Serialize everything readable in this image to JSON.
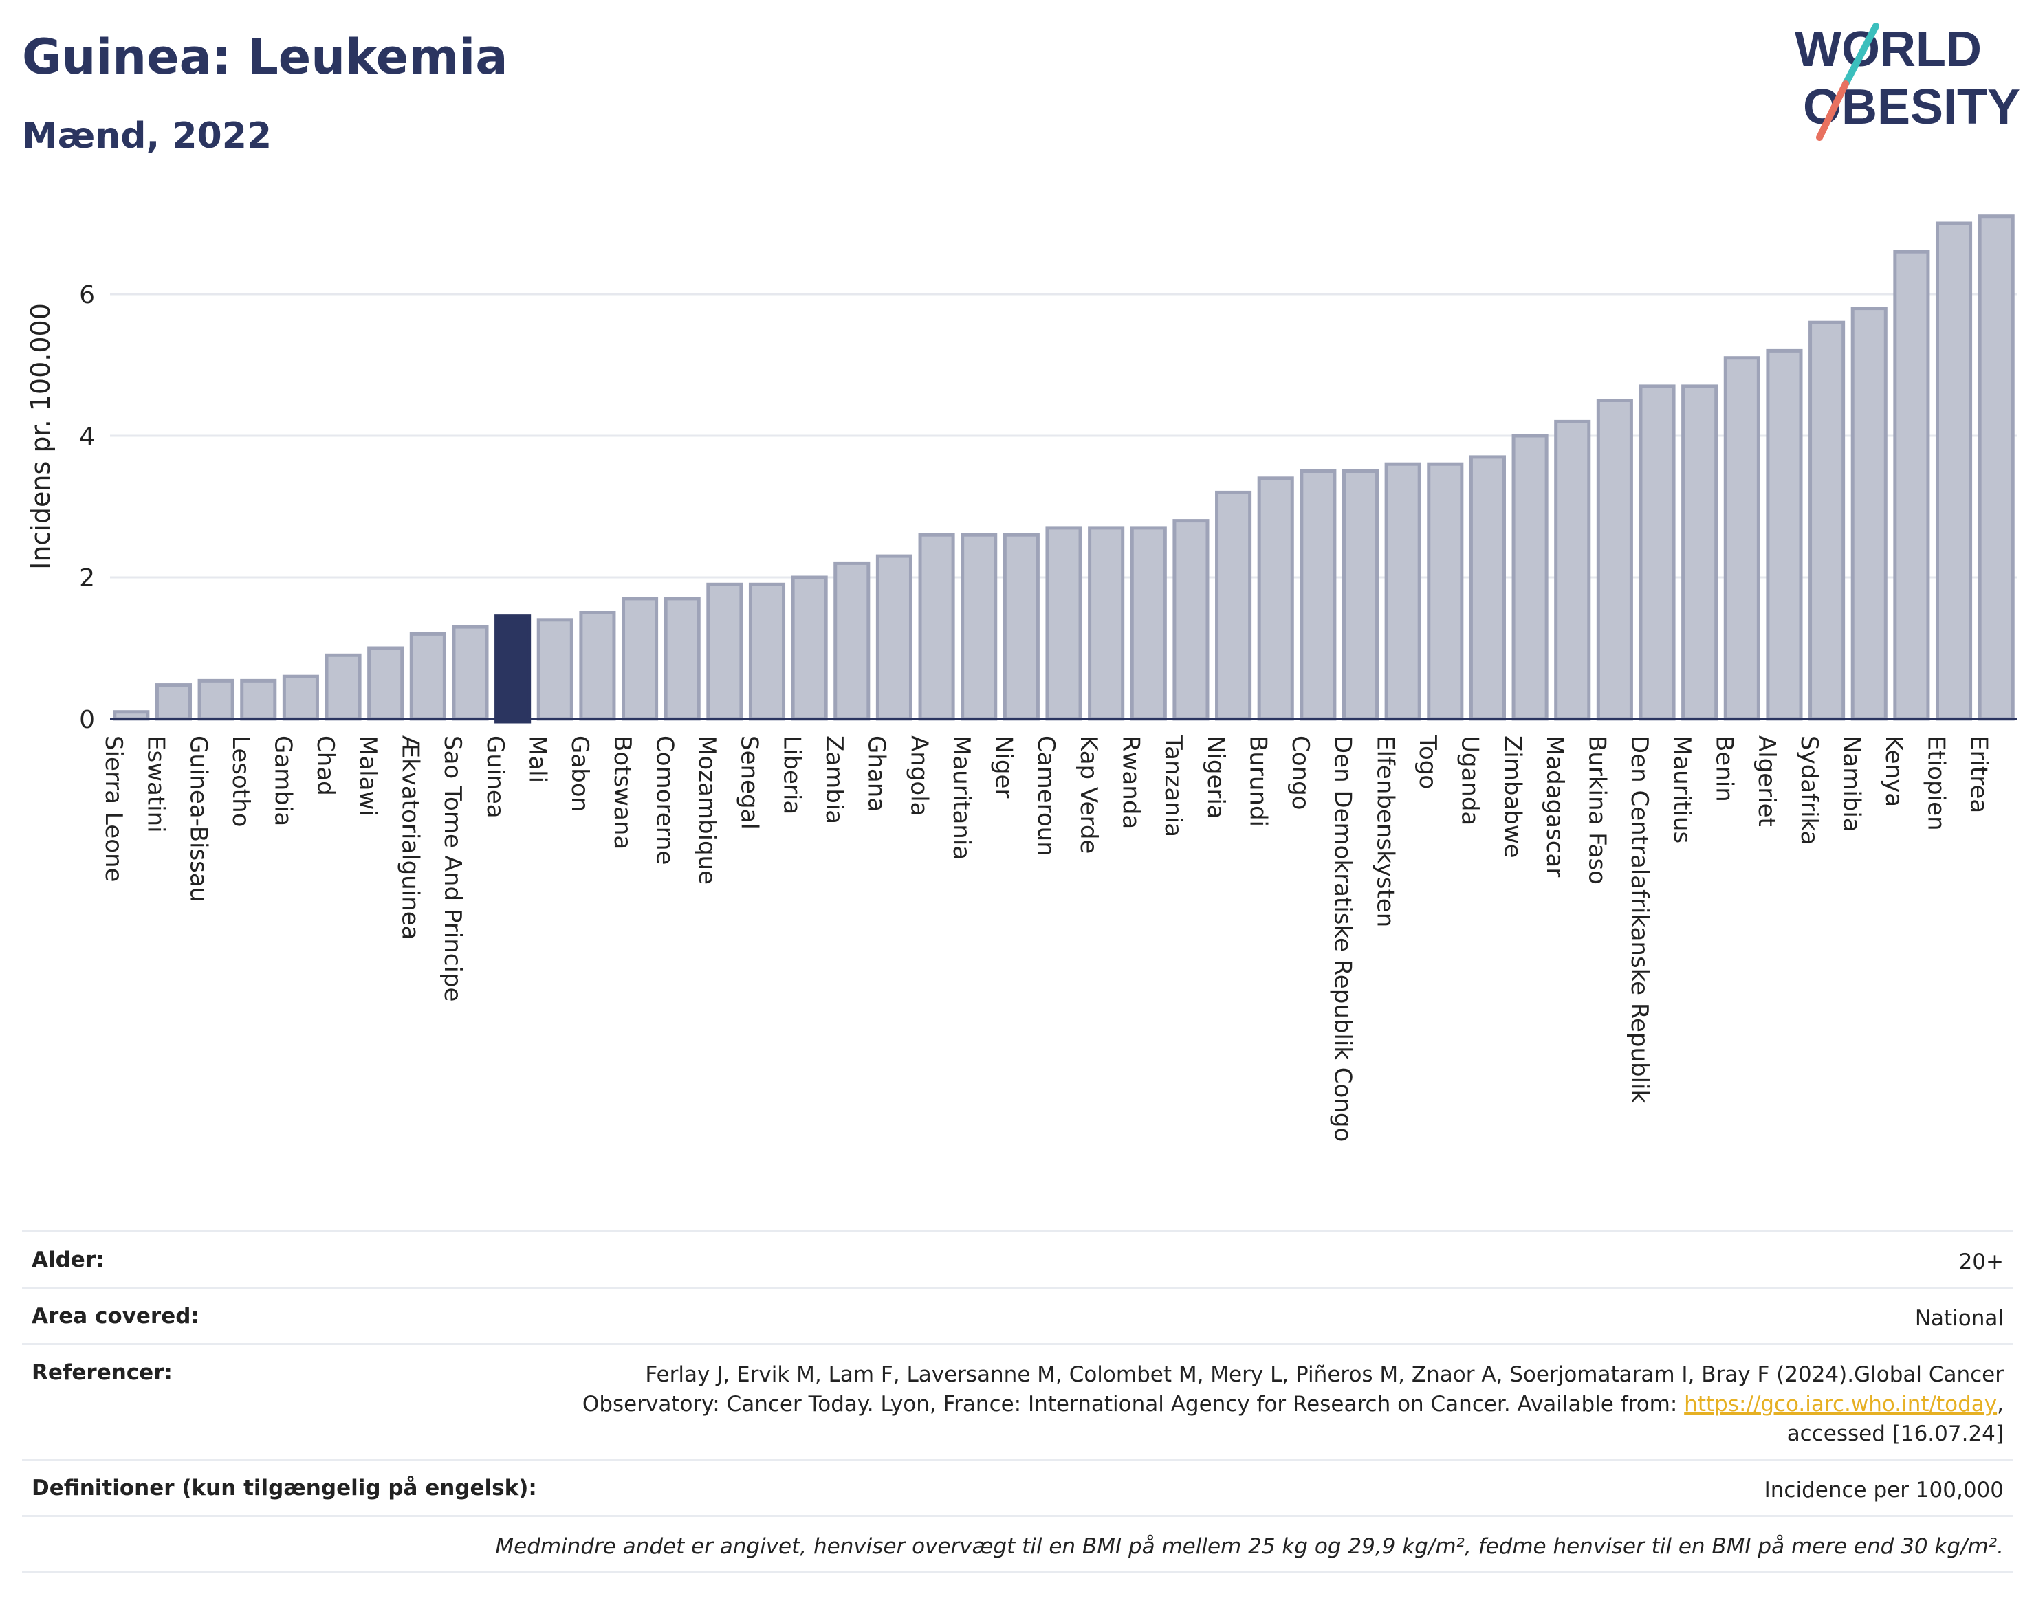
{
  "title": "Guinea: Leukemia",
  "subtitle": "Mænd, 2022",
  "logo": {
    "line1": "WORLD",
    "line2": "OBESITY",
    "color_text": "#2b3560",
    "color_slash_top": "#3bbfbd",
    "color_slash_bottom": "#e8715f"
  },
  "colors": {
    "bar": "#bfc3d0",
    "bar_stroke": "#9ea3b8",
    "highlight": "#2b3560",
    "grid": "#e6e8ee",
    "axis": "#2b3560"
  },
  "chart_data": {
    "type": "bar",
    "ylabel": "Incidens pr. 100.000",
    "xlabel": "",
    "ylim": [
      0,
      7.2
    ],
    "yticks": [
      0,
      2,
      4,
      6
    ],
    "grid": true,
    "highlight": "Guinea",
    "categories": [
      "Sierra Leone",
      "Eswatini",
      "Guinea-Bissau",
      "Lesotho",
      "Gambia",
      "Chad",
      "Malawi",
      "Ækvatorialguinea",
      "Sao Tome And Principe",
      "Guinea",
      "Mali",
      "Gabon",
      "Botswana",
      "Comorerne",
      "Mozambique",
      "Senegal",
      "Liberia",
      "Zambia",
      "Ghana",
      "Angola",
      "Mauritania",
      "Niger",
      "Cameroun",
      "Kap Verde",
      "Rwanda",
      "Tanzania",
      "Nigeria",
      "Burundi",
      "Congo",
      "Den Demokratiske Republik Congo",
      "Elfenbenskysten",
      "Togo",
      "Uganda",
      "Zimbabwe",
      "Madagascar",
      "Burkina Faso",
      "Den Centralafrikanske Republik",
      "Mauritius",
      "Benin",
      "Algeriet",
      "Sydafrika",
      "Namibia",
      "Kenya",
      "Etiopien",
      "Eritrea"
    ],
    "values": [
      0.1,
      0.48,
      0.54,
      0.54,
      0.6,
      0.9,
      1.0,
      1.2,
      1.3,
      1.45,
      1.4,
      1.5,
      1.7,
      1.7,
      1.9,
      1.9,
      2.0,
      2.2,
      2.3,
      2.6,
      2.6,
      2.6,
      2.7,
      2.7,
      2.7,
      2.8,
      3.2,
      3.4,
      3.5,
      3.5,
      3.6,
      3.6,
      3.7,
      4.0,
      4.2,
      4.5,
      4.7,
      4.7,
      5.1,
      5.2,
      5.6,
      5.8,
      6.6,
      7.0,
      7.1
    ]
  },
  "meta": {
    "age_label": "Alder:",
    "age_value": "20+",
    "area_label": "Area covered:",
    "area_value": "National",
    "ref_label": "Referencer:",
    "ref_line1": "Ferlay J, Ervik M, Lam F, Laversanne M, Colombet M, Mery L, Piñeros M, Znaor A, Soerjomataram I, Bray F (2024).Global Cancer",
    "ref_line2": "Observatory: Cancer Today. Lyon, France: International Agency for Research on Cancer. Available from:",
    "ref_link": "https://gco.iarc.who.int/today",
    "ref_line3": "accessed [16.07.24]",
    "def_label": "Definitioner (kun tilgængelig på engelsk):",
    "def_value": "Incidence per 100,000",
    "note": "Medmindre andet er angivet, henviser overvægt til en BMI på mellem 25 kg og 29,9 kg/m², fedme henviser til en BMI på mere end 30 kg/m²."
  }
}
